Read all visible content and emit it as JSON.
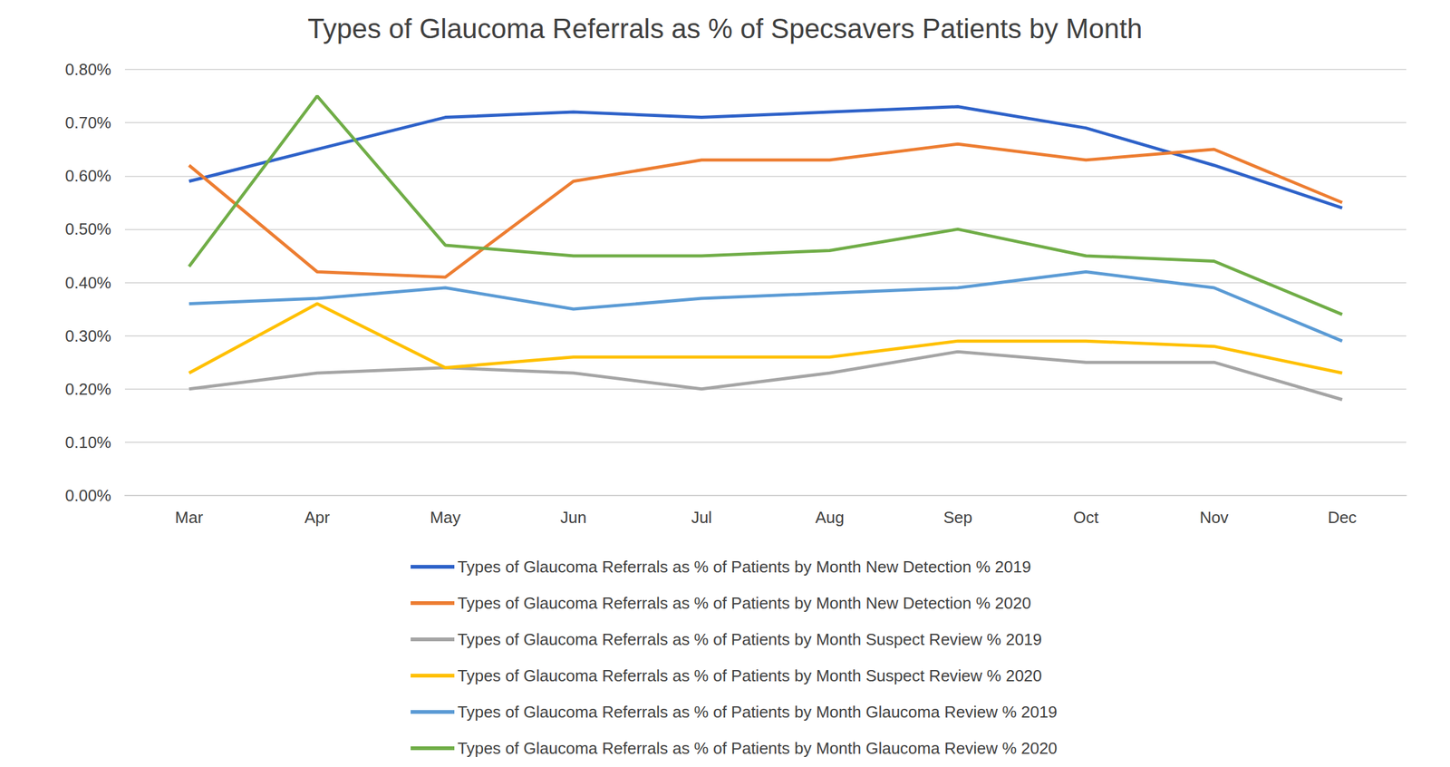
{
  "chart_data": {
    "type": "line",
    "title": "Types of Glaucoma Referrals as % of Specsavers Patients by Month",
    "categories": [
      "Mar",
      "Apr",
      "May",
      "Jun",
      "Jul",
      "Aug",
      "Sep",
      "Oct",
      "Nov",
      "Dec"
    ],
    "series": [
      {
        "name": "Types of Glaucoma Referrals as % of Patients by Month New Detection % 2019",
        "color": "#2e62c9",
        "values": [
          0.59,
          0.65,
          0.71,
          0.72,
          0.71,
          0.72,
          0.73,
          0.69,
          0.62,
          0.54
        ]
      },
      {
        "name": "Types of Glaucoma Referrals as % of Patients by Month New Detection % 2020",
        "color": "#ed7d31",
        "values": [
          0.62,
          0.42,
          0.41,
          0.59,
          0.63,
          0.63,
          0.66,
          0.63,
          0.65,
          0.55
        ]
      },
      {
        "name": "Types of Glaucoma Referrals as % of Patients by Month Suspect Review % 2019",
        "color": "#a5a5a5",
        "values": [
          0.2,
          0.23,
          0.24,
          0.23,
          0.2,
          0.23,
          0.27,
          0.25,
          0.25,
          0.18
        ]
      },
      {
        "name": "Types of Glaucoma Referrals as % of Patients by Month Suspect Review % 2020",
        "color": "#ffc000",
        "values": [
          0.23,
          0.36,
          0.24,
          0.26,
          0.26,
          0.26,
          0.29,
          0.29,
          0.28,
          0.23
        ]
      },
      {
        "name": "Types of Glaucoma Referrals as % of Patients by Month Glaucoma Review % 2019",
        "color": "#5b9bd5",
        "values": [
          0.36,
          0.37,
          0.39,
          0.35,
          0.37,
          0.38,
          0.39,
          0.42,
          0.39,
          0.29
        ]
      },
      {
        "name": "Types of Glaucoma Referrals as % of Patients by Month Glaucoma Review % 2020",
        "color": "#70ad47",
        "values": [
          0.43,
          0.75,
          0.47,
          0.45,
          0.45,
          0.46,
          0.5,
          0.45,
          0.44,
          0.34
        ]
      }
    ],
    "ylim": [
      0,
      0.8
    ],
    "yticks": [
      {
        "value": 0,
        "label": "0.00%"
      },
      {
        "value": 0.1,
        "label": "0.10%"
      },
      {
        "value": 0.2,
        "label": "0.20%"
      },
      {
        "value": 0.3,
        "label": "0.30%"
      },
      {
        "value": 0.4,
        "label": "0.40%"
      },
      {
        "value": 0.5,
        "label": "0.50%"
      },
      {
        "value": 0.6,
        "label": "0.60%"
      },
      {
        "value": 0.7,
        "label": "0.70%"
      },
      {
        "value": 0.8,
        "label": "0.80%"
      }
    ],
    "grid": true,
    "legend": "bottom"
  }
}
